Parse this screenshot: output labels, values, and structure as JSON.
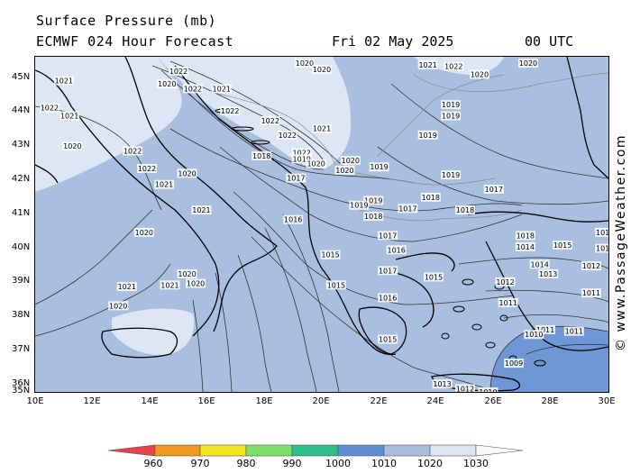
{
  "header": {
    "title": "Surface Pressure (mb)",
    "model": "ECMWF 024 Hour Forecast",
    "date": "Fri 02 May 2025",
    "time": "00 UTC"
  },
  "credit": "© www.PassageWeather.com",
  "axes": {
    "lat_labels": [
      "45N",
      "44N",
      "43N",
      "42N",
      "41N",
      "40N",
      "39N",
      "38N",
      "37N",
      "36N",
      "35N"
    ],
    "lon_labels": [
      "10E",
      "12E",
      "14E",
      "16E",
      "18E",
      "20E",
      "22E",
      "24E",
      "26E",
      "28E",
      "30E"
    ]
  },
  "colorbar": {
    "labels": [
      "960",
      "970",
      "980",
      "990",
      "1000",
      "1010",
      "1020",
      "1030"
    ],
    "colors": [
      "#e8434c",
      "#f29a1f",
      "#f5e61e",
      "#7de06b",
      "#2fbf8a",
      "#5f8fd3",
      "#a9bfe0",
      "#dde6f5"
    ]
  },
  "colors": {
    "sea_1010_1020": "#a9bfe0",
    "high_1020_plus": "#dde6f5",
    "low_below_1010": "#6f97d6",
    "coast": "#000000",
    "border": "#888888",
    "isobar": "#333333"
  },
  "pressure_labels": [
    {
      "text": "1021",
      "lon": 11.0,
      "lat": 44.75
    },
    {
      "text": "1022",
      "lon": 15.0,
      "lat": 45.05
    },
    {
      "text": "1021",
      "lon": 16.5,
      "lat": 44.5
    },
    {
      "text": "1020",
      "lon": 14.6,
      "lat": 44.65
    },
    {
      "text": "1022",
      "lon": 15.5,
      "lat": 44.5
    },
    {
      "text": "1022",
      "lon": 16.8,
      "lat": 43.8
    },
    {
      "text": "1022",
      "lon": 18.2,
      "lat": 43.5
    },
    {
      "text": "1022",
      "lon": 18.8,
      "lat": 43.05
    },
    {
      "text": "1022",
      "lon": 19.3,
      "lat": 42.5
    },
    {
      "text": "1021",
      "lon": 20.0,
      "lat": 43.25
    },
    {
      "text": "1020",
      "lon": 19.4,
      "lat": 45.3
    },
    {
      "text": "1020",
      "lon": 20.0,
      "lat": 45.1
    },
    {
      "text": "1022",
      "lon": 10.5,
      "lat": 43.9
    },
    {
      "text": "1021",
      "lon": 11.2,
      "lat": 43.65
    },
    {
      "text": "1020",
      "lon": 11.3,
      "lat": 42.7
    },
    {
      "text": "1022",
      "lon": 13.4,
      "lat": 42.55
    },
    {
      "text": "1022",
      "lon": 13.9,
      "lat": 42.0
    },
    {
      "text": "1020",
      "lon": 15.3,
      "lat": 41.85
    },
    {
      "text": "1021",
      "lon": 14.5,
      "lat": 41.5
    },
    {
      "text": "1021",
      "lon": 15.8,
      "lat": 40.7
    },
    {
      "text": "1018",
      "lon": 17.9,
      "lat": 42.4
    },
    {
      "text": "1019",
      "lon": 19.3,
      "lat": 42.3
    },
    {
      "text": "1020",
      "lon": 19.8,
      "lat": 42.15
    },
    {
      "text": "1020",
      "lon": 21.0,
      "lat": 42.25
    },
    {
      "text": "1020",
      "lon": 20.8,
      "lat": 41.95
    },
    {
      "text": "1019",
      "lon": 22.0,
      "lat": 42.05
    },
    {
      "text": "1017",
      "lon": 19.1,
      "lat": 41.7
    },
    {
      "text": "1019",
      "lon": 24.5,
      "lat": 44.0
    },
    {
      "text": "1019",
      "lon": 24.5,
      "lat": 43.65
    },
    {
      "text": "1019",
      "lon": 23.7,
      "lat": 43.05
    },
    {
      "text": "1019",
      "lon": 24.5,
      "lat": 41.8
    },
    {
      "text": "1017",
      "lon": 26.0,
      "lat": 41.35
    },
    {
      "text": "1018",
      "lon": 23.8,
      "lat": 41.1
    },
    {
      "text": "1019",
      "lon": 21.8,
      "lat": 41.0
    },
    {
      "text": "1019",
      "lon": 21.3,
      "lat": 40.85
    },
    {
      "text": "1017",
      "lon": 23.0,
      "lat": 40.75
    },
    {
      "text": "1018",
      "lon": 25.0,
      "lat": 40.7
    },
    {
      "text": "1018",
      "lon": 21.8,
      "lat": 40.5
    },
    {
      "text": "1016",
      "lon": 19.0,
      "lat": 40.4
    },
    {
      "text": "1017",
      "lon": 22.3,
      "lat": 39.9
    },
    {
      "text": "1016",
      "lon": 22.6,
      "lat": 39.45
    },
    {
      "text": "1015",
      "lon": 20.3,
      "lat": 39.3
    },
    {
      "text": "1017",
      "lon": 22.3,
      "lat": 38.8
    },
    {
      "text": "1015",
      "lon": 23.9,
      "lat": 38.6
    },
    {
      "text": "1015",
      "lon": 20.5,
      "lat": 38.35
    },
    {
      "text": "1016",
      "lon": 22.3,
      "lat": 37.95
    },
    {
      "text": "1015",
      "lon": 22.3,
      "lat": 36.65
    },
    {
      "text": "1018",
      "lon": 27.1,
      "lat": 39.9
    },
    {
      "text": "1014",
      "lon": 27.1,
      "lat": 39.55
    },
    {
      "text": "1015",
      "lon": 28.4,
      "lat": 39.6
    },
    {
      "text": "1014",
      "lon": 27.6,
      "lat": 39.0
    },
    {
      "text": "1013",
      "lon": 27.9,
      "lat": 38.7
    },
    {
      "text": "1012",
      "lon": 26.4,
      "lat": 38.45
    },
    {
      "text": "1012",
      "lon": 29.4,
      "lat": 38.95
    },
    {
      "text": "1011",
      "lon": 29.4,
      "lat": 38.1
    },
    {
      "text": "1011",
      "lon": 26.5,
      "lat": 37.8
    },
    {
      "text": "1011",
      "lon": 27.8,
      "lat": 36.95
    },
    {
      "text": "1011",
      "lon": 28.8,
      "lat": 36.9
    },
    {
      "text": "1010",
      "lon": 27.4,
      "lat": 36.8
    },
    {
      "text": "1009",
      "lon": 26.7,
      "lat": 35.9
    },
    {
      "text": "1013",
      "lon": 24.2,
      "lat": 35.25
    },
    {
      "text": "1012",
      "lon": 25.0,
      "lat": 35.1
    },
    {
      "text": "1010",
      "lon": 25.8,
      "lat": 35.0
    },
    {
      "text": "1020",
      "lon": 13.8,
      "lat": 40.0
    },
    {
      "text": "1020",
      "lon": 15.3,
      "lat": 38.7
    },
    {
      "text": "1021",
      "lon": 14.7,
      "lat": 38.35
    },
    {
      "text": "1020",
      "lon": 15.6,
      "lat": 38.4
    },
    {
      "text": "1021",
      "lon": 13.2,
      "lat": 38.3
    },
    {
      "text": "1020",
      "lon": 12.9,
      "lat": 37.7
    },
    {
      "text": "1022",
      "lon": 24.6,
      "lat": 45.2
    },
    {
      "text": "1020",
      "lon": 25.5,
      "lat": 44.95
    },
    {
      "text": "1021",
      "lon": 23.7,
      "lat": 45.25
    },
    {
      "text": "1020",
      "lon": 27.2,
      "lat": 45.3
    },
    {
      "text": "101",
      "lon": 29.8,
      "lat": 40.0
    },
    {
      "text": "101",
      "lon": 29.8,
      "lat": 39.5
    }
  ]
}
